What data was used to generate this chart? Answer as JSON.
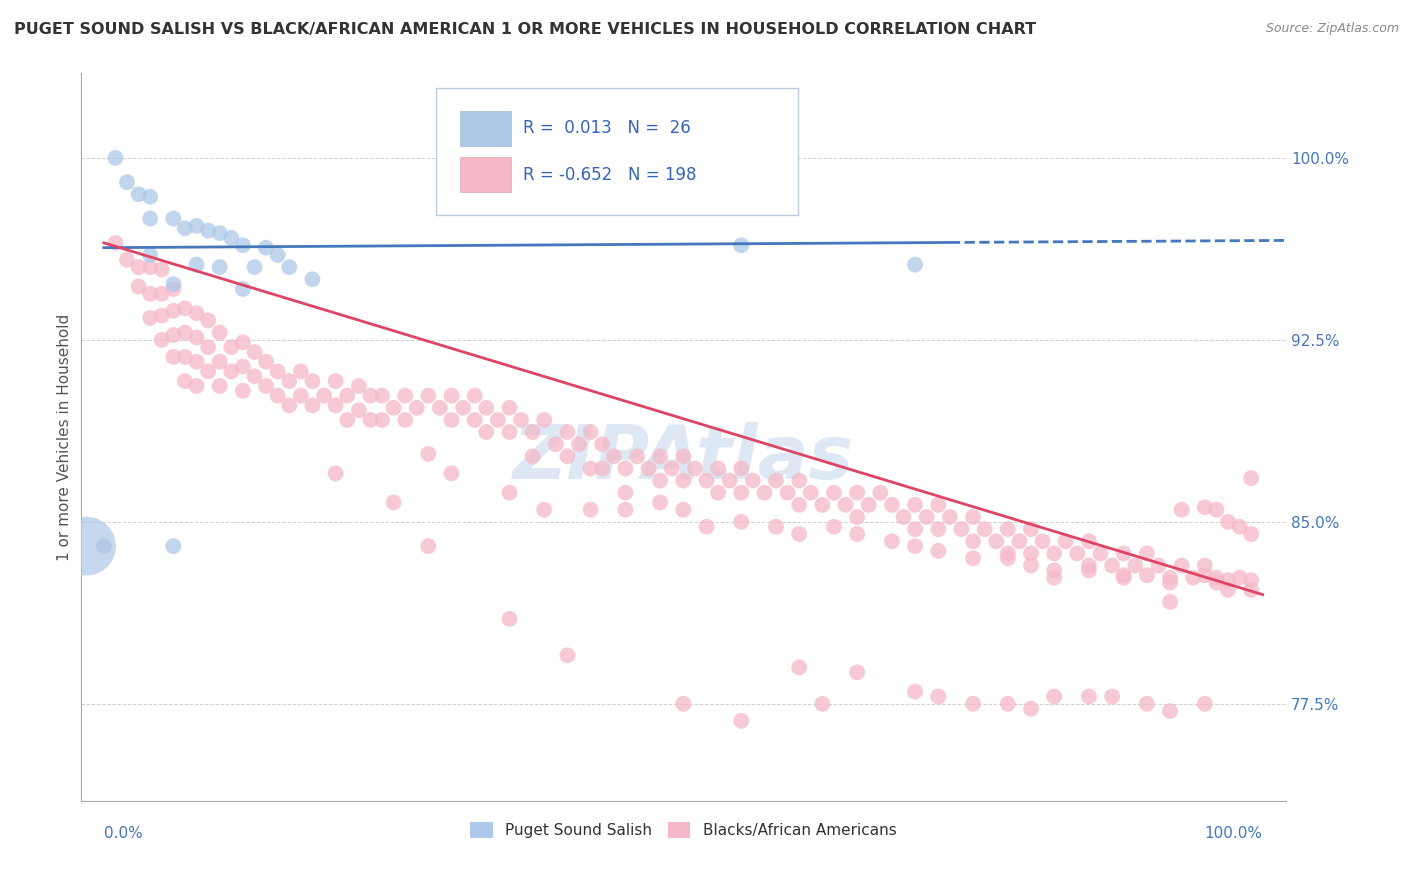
{
  "title": "PUGET SOUND SALISH VS BLACK/AFRICAN AMERICAN 1 OR MORE VEHICLES IN HOUSEHOLD CORRELATION CHART",
  "source_text": "Source: ZipAtlas.com",
  "ylabel": "1 or more Vehicles in Household",
  "ylabel_ticks": [
    "77.5%",
    "85.0%",
    "92.5%",
    "100.0%"
  ],
  "ylabel_tick_values": [
    0.775,
    0.85,
    0.925,
    1.0
  ],
  "xlim": [
    -0.02,
    1.02
  ],
  "ylim": [
    0.735,
    1.035
  ],
  "watermark": "ZIPAtlas",
  "legend_blue_r": "0.013",
  "legend_blue_n": "26",
  "legend_pink_r": "-0.652",
  "legend_pink_n": "198",
  "legend_label_blue": "Puget Sound Salish",
  "legend_label_pink": "Blacks/African Americans",
  "blue_color": "#adc8e8",
  "pink_color": "#f5b8c8",
  "blue_line_color": "#4477bb",
  "pink_line_color": "#dd4466",
  "blue_line_y_start": 0.963,
  "blue_line_y_end": 0.966,
  "blue_line_solid_end": 0.73,
  "pink_line_y_start": 0.965,
  "pink_line_y_end": 0.82,
  "blue_scatter": [
    [
      0.01,
      1.0
    ],
    [
      0.02,
      0.99
    ],
    [
      0.03,
      0.985
    ],
    [
      0.04,
      0.984
    ],
    [
      0.04,
      0.975
    ],
    [
      0.06,
      0.975
    ],
    [
      0.07,
      0.971
    ],
    [
      0.08,
      0.972
    ],
    [
      0.09,
      0.97
    ],
    [
      0.1,
      0.969
    ],
    [
      0.11,
      0.967
    ],
    [
      0.12,
      0.964
    ],
    [
      0.13,
      0.955
    ],
    [
      0.14,
      0.963
    ],
    [
      0.15,
      0.96
    ],
    [
      0.04,
      0.96
    ],
    [
      0.06,
      0.948
    ],
    [
      0.08,
      0.956
    ],
    [
      0.1,
      0.955
    ],
    [
      0.12,
      0.946
    ],
    [
      0.16,
      0.955
    ],
    [
      0.18,
      0.95
    ],
    [
      0.06,
      0.84
    ],
    [
      0.55,
      0.964
    ],
    [
      0.7,
      0.956
    ],
    [
      0.0,
      0.84
    ]
  ],
  "blue_large_circle": [
    0.0,
    0.84
  ],
  "pink_scatter": [
    [
      0.01,
      0.965
    ],
    [
      0.02,
      0.958
    ],
    [
      0.03,
      0.955
    ],
    [
      0.03,
      0.947
    ],
    [
      0.04,
      0.955
    ],
    [
      0.04,
      0.944
    ],
    [
      0.04,
      0.934
    ],
    [
      0.05,
      0.954
    ],
    [
      0.05,
      0.944
    ],
    [
      0.05,
      0.935
    ],
    [
      0.05,
      0.925
    ],
    [
      0.06,
      0.946
    ],
    [
      0.06,
      0.937
    ],
    [
      0.06,
      0.927
    ],
    [
      0.06,
      0.918
    ],
    [
      0.07,
      0.938
    ],
    [
      0.07,
      0.928
    ],
    [
      0.07,
      0.918
    ],
    [
      0.07,
      0.908
    ],
    [
      0.08,
      0.936
    ],
    [
      0.08,
      0.926
    ],
    [
      0.08,
      0.916
    ],
    [
      0.08,
      0.906
    ],
    [
      0.09,
      0.933
    ],
    [
      0.09,
      0.922
    ],
    [
      0.09,
      0.912
    ],
    [
      0.1,
      0.928
    ],
    [
      0.1,
      0.916
    ],
    [
      0.1,
      0.906
    ],
    [
      0.11,
      0.922
    ],
    [
      0.11,
      0.912
    ],
    [
      0.12,
      0.924
    ],
    [
      0.12,
      0.914
    ],
    [
      0.12,
      0.904
    ],
    [
      0.13,
      0.92
    ],
    [
      0.13,
      0.91
    ],
    [
      0.14,
      0.916
    ],
    [
      0.14,
      0.906
    ],
    [
      0.15,
      0.912
    ],
    [
      0.15,
      0.902
    ],
    [
      0.16,
      0.908
    ],
    [
      0.16,
      0.898
    ],
    [
      0.17,
      0.912
    ],
    [
      0.17,
      0.902
    ],
    [
      0.18,
      0.908
    ],
    [
      0.18,
      0.898
    ],
    [
      0.19,
      0.902
    ],
    [
      0.2,
      0.908
    ],
    [
      0.2,
      0.898
    ],
    [
      0.21,
      0.902
    ],
    [
      0.21,
      0.892
    ],
    [
      0.22,
      0.906
    ],
    [
      0.22,
      0.896
    ],
    [
      0.23,
      0.902
    ],
    [
      0.23,
      0.892
    ],
    [
      0.24,
      0.902
    ],
    [
      0.24,
      0.892
    ],
    [
      0.25,
      0.897
    ],
    [
      0.26,
      0.902
    ],
    [
      0.26,
      0.892
    ],
    [
      0.27,
      0.897
    ],
    [
      0.28,
      0.902
    ],
    [
      0.28,
      0.878
    ],
    [
      0.29,
      0.897
    ],
    [
      0.3,
      0.902
    ],
    [
      0.3,
      0.892
    ],
    [
      0.31,
      0.897
    ],
    [
      0.32,
      0.902
    ],
    [
      0.32,
      0.892
    ],
    [
      0.33,
      0.897
    ],
    [
      0.33,
      0.887
    ],
    [
      0.34,
      0.892
    ],
    [
      0.35,
      0.897
    ],
    [
      0.35,
      0.887
    ],
    [
      0.36,
      0.892
    ],
    [
      0.37,
      0.887
    ],
    [
      0.37,
      0.877
    ],
    [
      0.38,
      0.892
    ],
    [
      0.39,
      0.882
    ],
    [
      0.4,
      0.887
    ],
    [
      0.4,
      0.877
    ],
    [
      0.41,
      0.882
    ],
    [
      0.42,
      0.887
    ],
    [
      0.42,
      0.872
    ],
    [
      0.43,
      0.882
    ],
    [
      0.43,
      0.872
    ],
    [
      0.44,
      0.877
    ],
    [
      0.45,
      0.872
    ],
    [
      0.45,
      0.862
    ],
    [
      0.46,
      0.877
    ],
    [
      0.47,
      0.872
    ],
    [
      0.48,
      0.877
    ],
    [
      0.48,
      0.867
    ],
    [
      0.49,
      0.872
    ],
    [
      0.5,
      0.877
    ],
    [
      0.5,
      0.867
    ],
    [
      0.51,
      0.872
    ],
    [
      0.52,
      0.867
    ],
    [
      0.53,
      0.872
    ],
    [
      0.53,
      0.862
    ],
    [
      0.54,
      0.867
    ],
    [
      0.55,
      0.872
    ],
    [
      0.55,
      0.862
    ],
    [
      0.56,
      0.867
    ],
    [
      0.57,
      0.862
    ],
    [
      0.58,
      0.867
    ],
    [
      0.59,
      0.862
    ],
    [
      0.6,
      0.867
    ],
    [
      0.6,
      0.857
    ],
    [
      0.61,
      0.862
    ],
    [
      0.62,
      0.857
    ],
    [
      0.63,
      0.862
    ],
    [
      0.64,
      0.857
    ],
    [
      0.65,
      0.862
    ],
    [
      0.65,
      0.852
    ],
    [
      0.66,
      0.857
    ],
    [
      0.67,
      0.862
    ],
    [
      0.68,
      0.857
    ],
    [
      0.69,
      0.852
    ],
    [
      0.7,
      0.857
    ],
    [
      0.7,
      0.847
    ],
    [
      0.71,
      0.852
    ],
    [
      0.72,
      0.857
    ],
    [
      0.72,
      0.847
    ],
    [
      0.73,
      0.852
    ],
    [
      0.74,
      0.847
    ],
    [
      0.75,
      0.852
    ],
    [
      0.75,
      0.842
    ],
    [
      0.76,
      0.847
    ],
    [
      0.77,
      0.842
    ],
    [
      0.78,
      0.847
    ],
    [
      0.78,
      0.837
    ],
    [
      0.79,
      0.842
    ],
    [
      0.8,
      0.847
    ],
    [
      0.8,
      0.837
    ],
    [
      0.81,
      0.842
    ],
    [
      0.82,
      0.837
    ],
    [
      0.82,
      0.827
    ],
    [
      0.83,
      0.842
    ],
    [
      0.84,
      0.837
    ],
    [
      0.85,
      0.842
    ],
    [
      0.85,
      0.832
    ],
    [
      0.86,
      0.837
    ],
    [
      0.87,
      0.832
    ],
    [
      0.88,
      0.837
    ],
    [
      0.88,
      0.827
    ],
    [
      0.89,
      0.832
    ],
    [
      0.9,
      0.837
    ],
    [
      0.91,
      0.832
    ],
    [
      0.92,
      0.827
    ],
    [
      0.92,
      0.817
    ],
    [
      0.93,
      0.832
    ],
    [
      0.94,
      0.827
    ],
    [
      0.95,
      0.832
    ],
    [
      0.96,
      0.827
    ],
    [
      0.97,
      0.822
    ],
    [
      0.98,
      0.827
    ],
    [
      0.99,
      0.822
    ],
    [
      0.2,
      0.87
    ],
    [
      0.25,
      0.858
    ],
    [
      0.3,
      0.87
    ],
    [
      0.35,
      0.862
    ],
    [
      0.28,
      0.84
    ],
    [
      0.35,
      0.81
    ],
    [
      0.38,
      0.855
    ],
    [
      0.42,
      0.855
    ],
    [
      0.45,
      0.855
    ],
    [
      0.48,
      0.858
    ],
    [
      0.5,
      0.855
    ],
    [
      0.52,
      0.848
    ],
    [
      0.55,
      0.85
    ],
    [
      0.58,
      0.848
    ],
    [
      0.6,
      0.845
    ],
    [
      0.63,
      0.848
    ],
    [
      0.65,
      0.845
    ],
    [
      0.68,
      0.842
    ],
    [
      0.7,
      0.84
    ],
    [
      0.72,
      0.838
    ],
    [
      0.75,
      0.835
    ],
    [
      0.78,
      0.835
    ],
    [
      0.8,
      0.832
    ],
    [
      0.82,
      0.83
    ],
    [
      0.85,
      0.83
    ],
    [
      0.88,
      0.828
    ],
    [
      0.9,
      0.828
    ],
    [
      0.92,
      0.825
    ],
    [
      0.95,
      0.828
    ],
    [
      0.97,
      0.826
    ],
    [
      0.99,
      0.826
    ],
    [
      0.4,
      0.795
    ],
    [
      0.5,
      0.775
    ],
    [
      0.55,
      0.768
    ],
    [
      0.6,
      0.79
    ],
    [
      0.62,
      0.775
    ],
    [
      0.65,
      0.788
    ],
    [
      0.7,
      0.78
    ],
    [
      0.72,
      0.778
    ],
    [
      0.75,
      0.775
    ],
    [
      0.78,
      0.775
    ],
    [
      0.8,
      0.773
    ],
    [
      0.82,
      0.778
    ],
    [
      0.85,
      0.778
    ],
    [
      0.87,
      0.778
    ],
    [
      0.9,
      0.775
    ],
    [
      0.92,
      0.772
    ],
    [
      0.95,
      0.775
    ],
    [
      0.96,
      0.825
    ],
    [
      0.96,
      0.855
    ],
    [
      0.95,
      0.856
    ],
    [
      0.93,
      0.855
    ],
    [
      0.99,
      0.868
    ],
    [
      0.99,
      0.845
    ],
    [
      0.97,
      0.85
    ],
    [
      0.98,
      0.848
    ]
  ]
}
